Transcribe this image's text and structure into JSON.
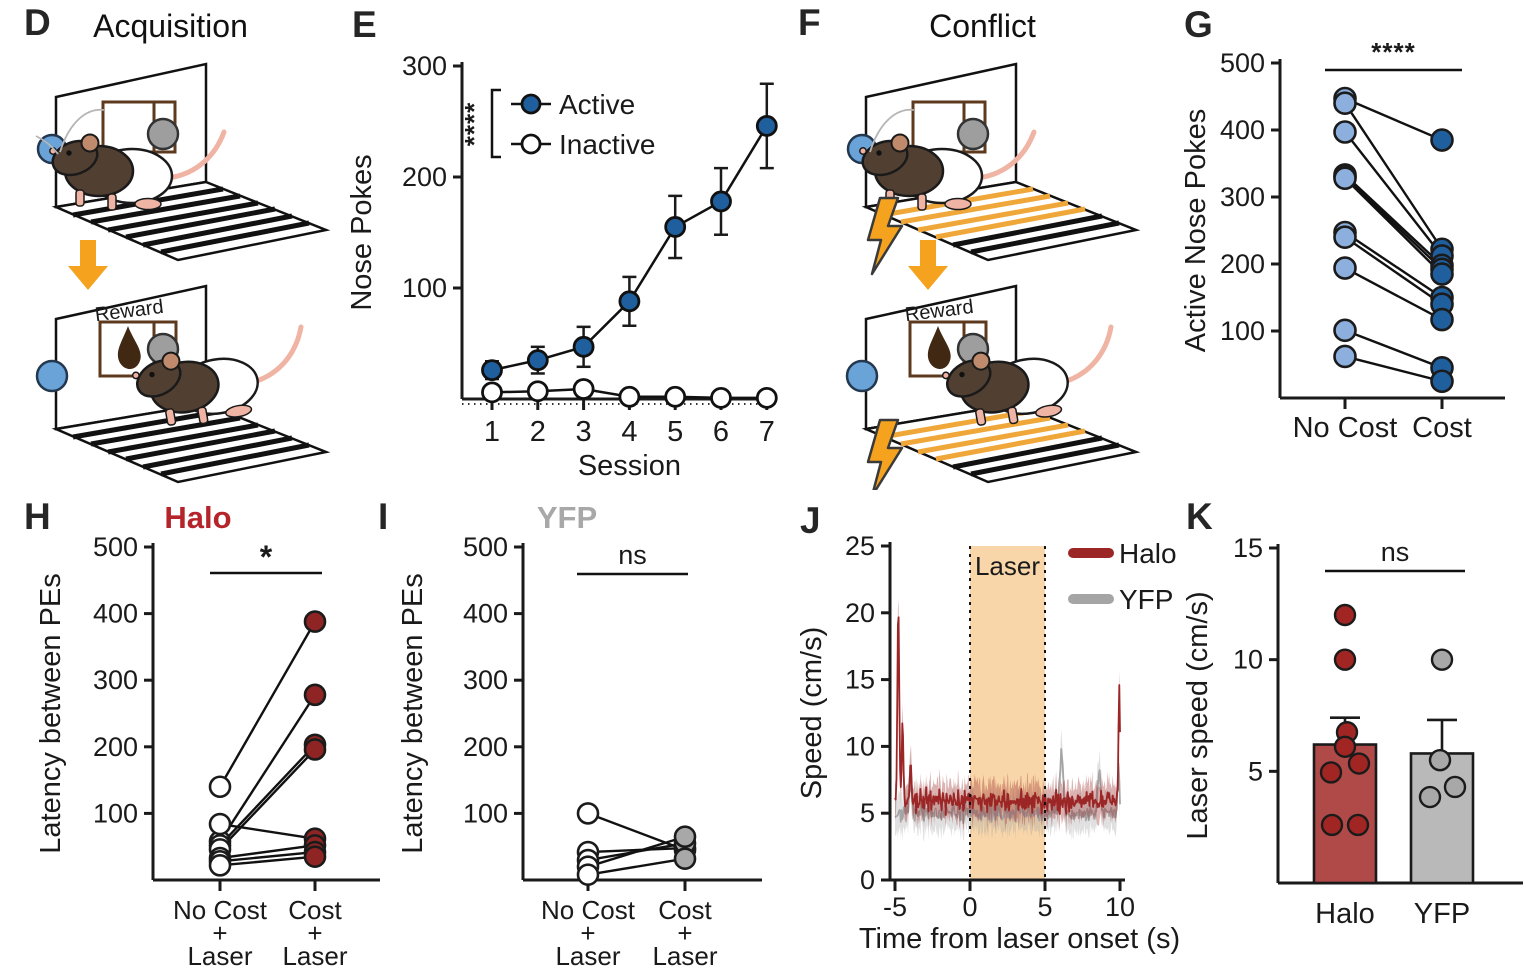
{
  "colors": {
    "active_blue": "#1f5f9e",
    "light_blue": "#8cafdd",
    "dark_red": "#8e2423",
    "trace_red": "#9c2626",
    "bar_red": "#b04a48",
    "gray_dot": "#a8a8a8",
    "bar_gray": "#b9b9b9",
    "trace_gray": "#a5a5a5",
    "orange": "#f5a31f",
    "laser_fill": "#f8d6a9",
    "axis_black": "#1a1a1a"
  },
  "panels": {
    "D": {
      "letter": "D",
      "title": "Acquisition",
      "reward_label": "Reward"
    },
    "E": {
      "letter": "E"
    },
    "F": {
      "letter": "F",
      "title": "Conflict",
      "reward_label": "Reward"
    },
    "G": {
      "letter": "G"
    },
    "H": {
      "letter": "H"
    },
    "I": {
      "letter": "I"
    },
    "J": {
      "letter": "J"
    },
    "K": {
      "letter": "K"
    }
  },
  "chart_data": [
    {
      "id": "E",
      "type": "line",
      "xlabel": "Session",
      "ylabel": "Nose Pokes",
      "x": [
        1,
        2,
        3,
        4,
        5,
        6,
        7
      ],
      "xlim": [
        1,
        7
      ],
      "ylim": [
        0,
        300
      ],
      "yticks": [
        100,
        200,
        300
      ],
      "sig": "****",
      "legend_position": "top-left",
      "series": [
        {
          "name": "Active",
          "color": "#1f5f9e",
          "values": [
            26,
            35,
            47,
            88,
            155,
            178,
            246
          ],
          "errors": [
            8,
            12,
            18,
            22,
            28,
            30,
            38
          ]
        },
        {
          "name": "Inactive",
          "color": "#ffffff",
          "values": [
            6,
            7,
            9,
            2,
            2,
            1,
            1
          ],
          "errors": [
            4,
            5,
            7,
            3,
            3,
            2,
            2
          ]
        }
      ]
    },
    {
      "id": "G",
      "type": "scatter",
      "ylabel": "Active Nose Pokes",
      "categories": [
        "No Cost",
        "Cost"
      ],
      "ylim": [
        0,
        500
      ],
      "yticks": [
        100,
        200,
        300,
        400,
        500
      ],
      "sig": "****",
      "point_colors": [
        "#8cafdd",
        "#1f5f9e"
      ],
      "pairs": [
        [
          447,
          385
        ],
        [
          440,
          222
        ],
        [
          397,
          212
        ],
        [
          333,
          198
        ],
        [
          330,
          192
        ],
        [
          328,
          185
        ],
        [
          247,
          150
        ],
        [
          240,
          140
        ],
        [
          194,
          117
        ],
        [
          101,
          45
        ],
        [
          62,
          25
        ]
      ]
    },
    {
      "id": "H",
      "type": "scatter",
      "title": "Halo",
      "title_color": "#b5242a",
      "ylabel": "Latency between PEs",
      "categories": [
        [
          "No Cost",
          "+",
          "Laser"
        ],
        [
          "Cost",
          "+",
          "Laser"
        ]
      ],
      "ylim": [
        0,
        500
      ],
      "yticks": [
        100,
        200,
        300,
        400,
        500
      ],
      "sig": "*",
      "point_colors": [
        "#ffffff",
        "#8e2423"
      ],
      "pairs": [
        [
          140,
          388
        ],
        [
          58,
          278
        ],
        [
          52,
          203
        ],
        [
          46,
          196
        ],
        [
          84,
          62
        ],
        [
          33,
          52
        ],
        [
          28,
          42
        ],
        [
          22,
          35
        ]
      ]
    },
    {
      "id": "I",
      "type": "scatter",
      "title": "YFP",
      "title_color": "#a8a8a8",
      "ylabel": "Latency between PEs",
      "categories": [
        [
          "No Cost",
          "+",
          "Laser"
        ],
        [
          "Cost",
          "+",
          "Laser"
        ]
      ],
      "ylim": [
        0,
        500
      ],
      "yticks": [
        100,
        200,
        300,
        400,
        500
      ],
      "sig": "ns",
      "point_colors": [
        "#ffffff",
        "#a8a8a8"
      ],
      "pairs": [
        [
          100,
          45
        ],
        [
          42,
          48
        ],
        [
          30,
          55
        ],
        [
          20,
          65
        ],
        [
          8,
          32
        ]
      ]
    },
    {
      "id": "J",
      "type": "area",
      "xlabel": "Time from laser onset (s)",
      "ylabel": "Speed (cm/s)",
      "xlim": [
        -5,
        10
      ],
      "xticks": [
        -5,
        0,
        5,
        10
      ],
      "ylim": [
        0,
        25
      ],
      "yticks": [
        0,
        5,
        10,
        15,
        20,
        25
      ],
      "laser_span": [
        0,
        5
      ],
      "laser_label": "Laser",
      "series": [
        {
          "name": "YFP",
          "color": "#a5a5a5",
          "baseline": 5.0,
          "noise": 1.0,
          "band": 1.3,
          "spikes": [
            [
              -4.0,
              2.5,
              0.08
            ],
            [
              6.1,
              4.5,
              0.12
            ],
            [
              8.6,
              3.2,
              0.1
            ],
            [
              9.9,
              3.5,
              0.06
            ]
          ]
        },
        {
          "name": "Halo",
          "color": "#9c2626",
          "baseline": 5.9,
          "noise": 1.15,
          "band": 1.25,
          "spikes": [
            [
              -4.78,
              14.5,
              0.06
            ],
            [
              -4.5,
              6.5,
              0.05
            ],
            [
              -3.95,
              3.5,
              0.05
            ],
            [
              9.95,
              8.5,
              0.05
            ]
          ]
        }
      ]
    },
    {
      "id": "K",
      "type": "bar",
      "ylabel": "Laser speed (cm/s)",
      "categories": [
        "Halo",
        "YFP"
      ],
      "ylim": [
        0,
        15
      ],
      "yticks": [
        5,
        10,
        15
      ],
      "sig": "ns",
      "bars": [
        {
          "name": "Halo",
          "value": 6.2,
          "error": 1.2,
          "fill": "#b04a48",
          "dot_color": "#a02523",
          "dots": [
            [
              0,
              12
            ],
            [
              0,
              10
            ],
            [
              2,
              6.75
            ],
            [
              0,
              6.1
            ],
            [
              14,
              5.35
            ],
            [
              -14,
              4.95
            ],
            [
              -13,
              2.6
            ],
            [
              13,
              2.6
            ]
          ]
        },
        {
          "name": "YFP",
          "value": 5.8,
          "error": 1.5,
          "fill": "#b9b9b9",
          "dot_color": "#a8a8a8",
          "dots": [
            [
              0,
              10
            ],
            [
              -2,
              5.5
            ],
            [
              13,
              4.3
            ],
            [
              -12,
              3.85
            ]
          ]
        }
      ]
    }
  ]
}
